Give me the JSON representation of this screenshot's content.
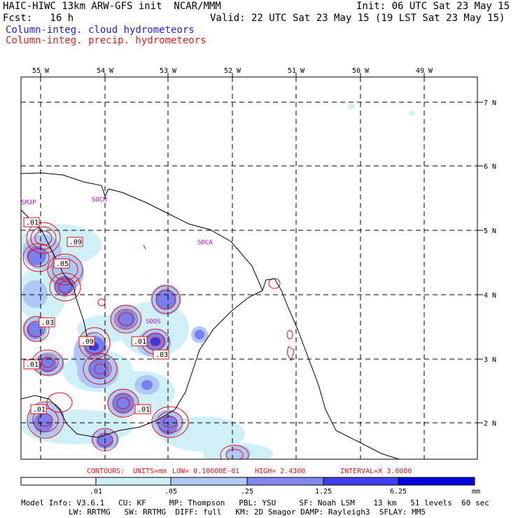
{
  "header": {
    "title": "HAIC-HIWC 13km ARW-GFS init  NCAR/MMM",
    "init": "Init: 06 UTC Sat 23 May 15",
    "fcst": "Fcst:   16 h",
    "valid": "Valid: 22 UTC Sat 23 May 15 (19 LST Sat 23 May 15)",
    "field_cloud": "Column-integ. cloud hydrometeors",
    "field_precip": "Column-integ. precip. hydrometeors"
  },
  "map": {
    "lon_labels": [
      "55 W",
      "54 W",
      "53 W",
      "52 W",
      "51 W",
      "50 W",
      "49 W"
    ],
    "lat_labels": [
      "7 N",
      "6 N",
      "5 N",
      "4 N",
      "3 N",
      "2 N"
    ],
    "stations": [
      "SMJP",
      "SOCM",
      "SOCA",
      "SOOS"
    ],
    "contour_labels": [
      ".01",
      ".09",
      ".05",
      ".03",
      ".09",
      ".01",
      ".01",
      ".03",
      ".01",
      ".01"
    ]
  },
  "contours_line": {
    "contours": "CONTOURS:",
    "units": "UNITS=mm",
    "low": "LOW= 0.10000E-01",
    "high": "HIGH=  2.4300",
    "interval": "INTERVAL=X  3.0000"
  },
  "colorbar": {
    "ticks": [
      ".01",
      ".05",
      ".25",
      "1.25",
      "6.25"
    ],
    "unit": "mm",
    "colors": [
      "#ffffff",
      "#d0f0f8",
      "#b0c8f8",
      "#8890f0",
      "#5050f0",
      "#2828e8",
      "#0000e0"
    ]
  },
  "footer": {
    "line1": "Model Info: V3.6.1   CU: KF     MP: Thompson   PBL: YSU     SF: Noah LSM    13 km   51 levels  60 sec",
    "line2": "LW: RRTMG   SW: RRTMG  DIFF: full   KM: 2D Smagor DAMP: Rayleigh3  SFLAY: MM5"
  }
}
